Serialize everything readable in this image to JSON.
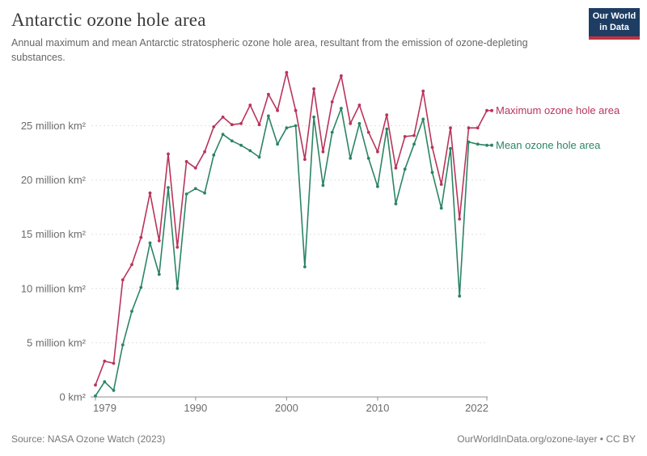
{
  "header": {
    "title": "Antarctic ozone hole area",
    "subtitle": "Annual maximum and mean Antarctic stratospheric ozone hole area, resultant from the emission of ozone-depleting substances.",
    "logo": {
      "line1": "Our World",
      "line2": "in Data",
      "bg_color": "#1d3d63",
      "stripe_color": "#bc3340"
    }
  },
  "chart_data": {
    "type": "line",
    "title": "Antarctic ozone hole area",
    "xlabel": "",
    "ylabel": "",
    "grid": "horizontal-dashed",
    "legend_position": "right-end-of-lines",
    "years": [
      1979,
      1980,
      1981,
      1982,
      1983,
      1984,
      1985,
      1986,
      1987,
      1988,
      1989,
      1990,
      1991,
      1992,
      1993,
      1994,
      1995,
      1996,
      1997,
      1998,
      1999,
      2000,
      2001,
      2002,
      2003,
      2004,
      2005,
      2006,
      2007,
      2008,
      2009,
      2010,
      2011,
      2012,
      2013,
      2014,
      2015,
      2016,
      2017,
      2018,
      2019,
      2020,
      2021,
      2022
    ],
    "series": [
      {
        "id": "maximum",
        "name": "Maximum ozone hole area",
        "color": "#b9345b",
        "unit": "million km²",
        "values": [
          1.1,
          3.3,
          3.1,
          10.8,
          12.2,
          14.7,
          18.8,
          14.4,
          22.4,
          13.8,
          21.7,
          21.1,
          22.6,
          24.9,
          25.8,
          25.1,
          25.2,
          26.9,
          25.1,
          27.9,
          26.4,
          29.9,
          26.4,
          21.9,
          28.4,
          22.6,
          27.2,
          29.6,
          25.2,
          26.9,
          24.4,
          22.6,
          26.0,
          21.1,
          24.0,
          24.1,
          28.2,
          23.0,
          19.6,
          24.8,
          16.4,
          24.8,
          24.8,
          26.4
        ]
      },
      {
        "id": "mean",
        "name": "Mean ozone hole area",
        "color": "#2c8465",
        "unit": "million km²",
        "values": [
          0.1,
          1.4,
          0.6,
          4.8,
          7.9,
          10.1,
          14.2,
          11.3,
          19.3,
          10.0,
          18.7,
          19.2,
          18.8,
          22.3,
          24.2,
          23.6,
          23.2,
          22.7,
          22.1,
          25.9,
          23.3,
          24.8,
          25.0,
          12.0,
          25.8,
          19.5,
          24.4,
          26.6,
          22.0,
          25.2,
          22.0,
          19.4,
          24.7,
          17.8,
          21.0,
          23.3,
          25.6,
          20.7,
          17.4,
          22.9,
          9.3,
          23.5,
          23.3,
          23.2
        ]
      }
    ],
    "x_axis": {
      "min": 1979,
      "max": 2022,
      "ticks": [
        1979,
        1990,
        2000,
        2010,
        2022
      ]
    },
    "y_axis": {
      "min": 0,
      "max": 30,
      "ticks": [
        {
          "value": 0,
          "label": "0 km²"
        },
        {
          "value": 5,
          "label": "5 million km²"
        },
        {
          "value": 10,
          "label": "10 million km²"
        },
        {
          "value": 15,
          "label": "15 million km²"
        },
        {
          "value": 20,
          "label": "20 million km²"
        },
        {
          "value": 25,
          "label": "25 million km²"
        }
      ]
    }
  },
  "footer": {
    "source": "Source: NASA Ozone Watch (2023)",
    "link": "OurWorldInData.org/ozone-layer • CC BY"
  }
}
